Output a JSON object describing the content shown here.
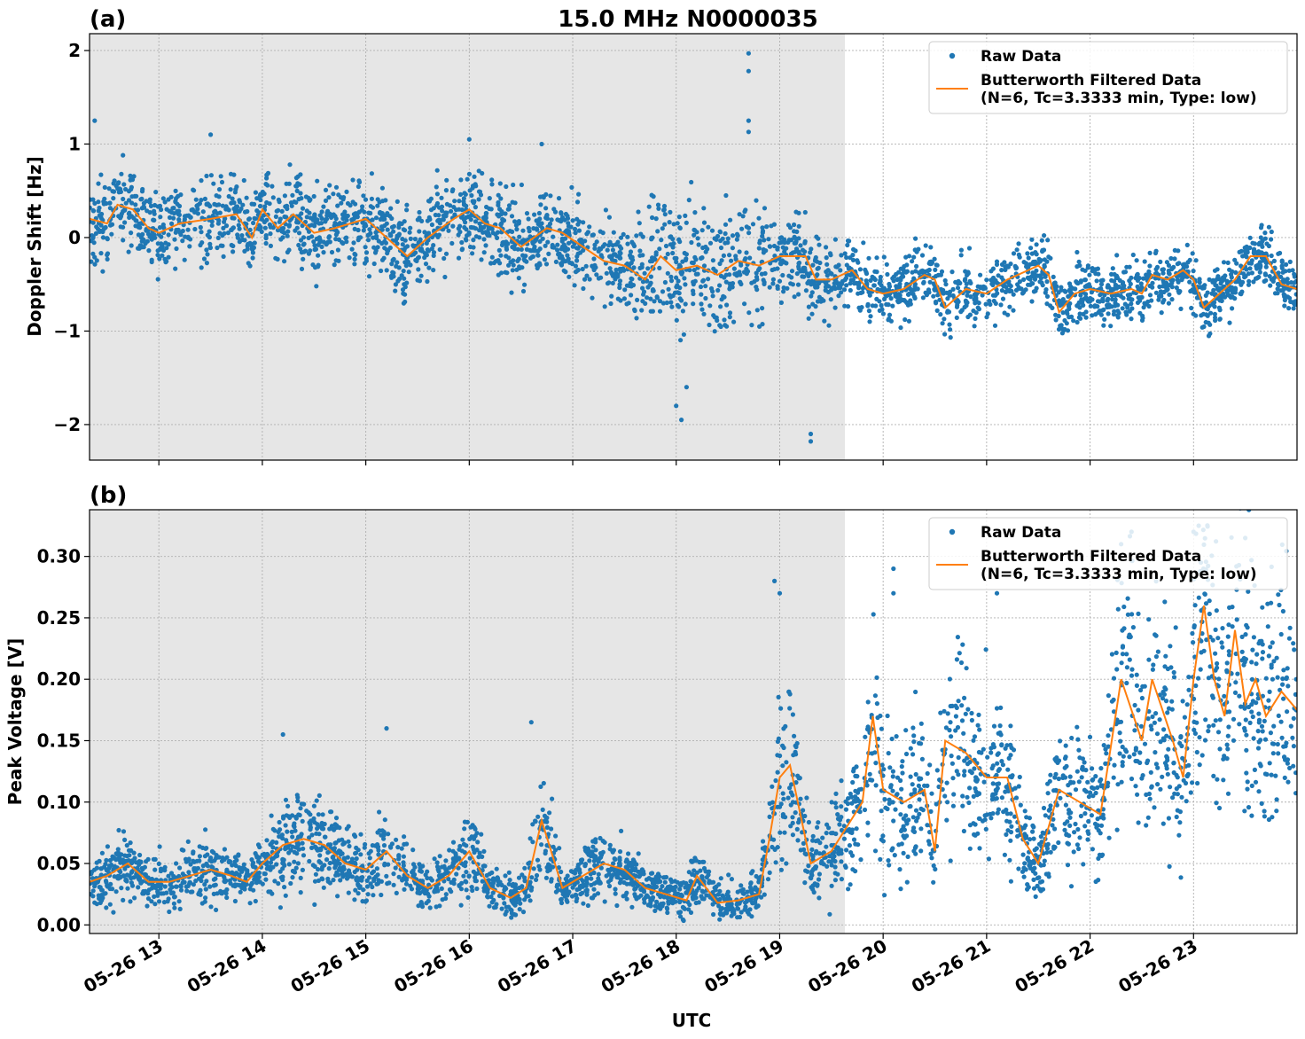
{
  "figure": {
    "title": "15.0 MHz N0000035",
    "xlabel": "UTC",
    "x_range_hours": [
      12.33,
      24.0
    ],
    "x_tick_hours": [
      13,
      14,
      15,
      16,
      17,
      18,
      19,
      20,
      21,
      22,
      23
    ],
    "x_tick_labels": [
      "05-26 13",
      "05-26 14",
      "05-26 15",
      "05-26 16",
      "05-26 17",
      "05-26 18",
      "05-26 19",
      "05-26 20",
      "05-26 21",
      "05-26 22",
      "05-26 23"
    ],
    "shaded_interval_hours": [
      12.33,
      19.63
    ],
    "grid": true
  },
  "colors": {
    "raw": "#1f77b4",
    "filtered": "#ff7f0e",
    "shade": "#e6e6e6",
    "grid": "#b0b0b0"
  },
  "legend": {
    "raw_label": "Raw Data",
    "filtered_label_line1": "Butterworth Filtered Data",
    "filtered_label_line2": "(N=6, Tc=3.3333 min, Type: low)"
  },
  "chart_data": [
    {
      "panel_label": "(a)",
      "type": "scatter",
      "ylabel": "Doppler Shift [Hz]",
      "ylim": [
        -2.38,
        2.18
      ],
      "yticks": [
        -2,
        -1,
        0,
        1,
        2
      ],
      "ytick_labels": [
        "−2",
        "−1",
        "0",
        "1",
        "2"
      ],
      "legend_position": "upper right",
      "series": [
        {
          "name": "Butterworth Filtered Data (N=6, Tc=3.3333 min, Type: low)",
          "kind": "line",
          "x": [
            12.33,
            12.5,
            12.6,
            12.75,
            12.9,
            13.0,
            13.2,
            13.5,
            13.75,
            13.9,
            14.0,
            14.15,
            14.3,
            14.5,
            14.7,
            15.0,
            15.2,
            15.4,
            15.6,
            15.85,
            16.0,
            16.15,
            16.3,
            16.5,
            16.75,
            16.9,
            17.1,
            17.3,
            17.5,
            17.7,
            17.85,
            18.0,
            18.2,
            18.4,
            18.6,
            18.8,
            19.0,
            19.25,
            19.35,
            19.5,
            19.7,
            19.85,
            20.0,
            20.2,
            20.4,
            20.5,
            20.6,
            20.8,
            21.0,
            21.2,
            21.4,
            21.5,
            21.6,
            21.7,
            21.85,
            22.0,
            22.2,
            22.4,
            22.5,
            22.6,
            22.75,
            22.9,
            23.0,
            23.1,
            23.3,
            23.4,
            23.55,
            23.7,
            23.85,
            24.0
          ],
          "y": [
            0.2,
            0.15,
            0.35,
            0.3,
            0.1,
            0.05,
            0.15,
            0.2,
            0.25,
            0.0,
            0.3,
            0.1,
            0.25,
            0.05,
            0.1,
            0.2,
            0.0,
            -0.2,
            0.0,
            0.2,
            0.3,
            0.15,
            0.1,
            -0.1,
            0.1,
            0.05,
            -0.1,
            -0.25,
            -0.3,
            -0.45,
            -0.2,
            -0.35,
            -0.3,
            -0.4,
            -0.25,
            -0.3,
            -0.2,
            -0.2,
            -0.45,
            -0.45,
            -0.35,
            -0.55,
            -0.6,
            -0.55,
            -0.4,
            -0.45,
            -0.75,
            -0.55,
            -0.6,
            -0.45,
            -0.35,
            -0.3,
            -0.4,
            -0.8,
            -0.6,
            -0.55,
            -0.6,
            -0.55,
            -0.6,
            -0.4,
            -0.45,
            -0.35,
            -0.45,
            -0.75,
            -0.55,
            -0.45,
            -0.2,
            -0.2,
            -0.5,
            -0.55
          ]
        },
        {
          "name": "Raw Data",
          "kind": "points",
          "outliers_x": [
            12.38,
            13.5,
            16.0,
            16.7,
            18.0,
            18.05,
            18.1,
            18.7,
            18.7,
            18.7,
            18.7,
            19.3,
            19.3
          ],
          "outliers_y": [
            1.25,
            1.1,
            1.05,
            1.0,
            -1.8,
            -1.95,
            -1.6,
            1.97,
            1.78,
            1.25,
            1.13,
            -2.1,
            -2.18
          ]
        }
      ]
    },
    {
      "panel_label": "(b)",
      "type": "scatter",
      "ylabel": "Peak Voltage [V]",
      "ylim": [
        -0.007,
        0.338
      ],
      "yticks": [
        0.0,
        0.05,
        0.1,
        0.15,
        0.2,
        0.25,
        0.3
      ],
      "ytick_labels": [
        "0.00",
        "0.05",
        "0.10",
        "0.15",
        "0.20",
        "0.25",
        "0.30"
      ],
      "legend_position": "upper right",
      "series": [
        {
          "name": "Butterworth Filtered Data (N=6, Tc=3.3333 min, Type: low)",
          "kind": "line",
          "x": [
            12.33,
            12.5,
            12.7,
            12.9,
            13.1,
            13.3,
            13.5,
            13.7,
            13.85,
            14.0,
            14.2,
            14.4,
            14.6,
            14.8,
            15.0,
            15.2,
            15.4,
            15.6,
            15.8,
            16.0,
            16.2,
            16.4,
            16.55,
            16.7,
            16.9,
            17.1,
            17.3,
            17.5,
            17.7,
            17.9,
            18.1,
            18.2,
            18.4,
            18.6,
            18.8,
            18.9,
            19.0,
            19.1,
            19.3,
            19.5,
            19.65,
            19.8,
            19.9,
            20.0,
            20.2,
            20.4,
            20.5,
            20.6,
            20.8,
            21.0,
            21.2,
            21.35,
            21.5,
            21.7,
            21.9,
            22.1,
            22.3,
            22.5,
            22.6,
            22.8,
            22.9,
            23.0,
            23.1,
            23.2,
            23.3,
            23.4,
            23.5,
            23.6,
            23.7,
            23.85,
            24.0
          ],
          "y": [
            0.035,
            0.04,
            0.05,
            0.035,
            0.035,
            0.04,
            0.045,
            0.04,
            0.035,
            0.05,
            0.065,
            0.07,
            0.065,
            0.05,
            0.045,
            0.06,
            0.04,
            0.03,
            0.04,
            0.06,
            0.03,
            0.022,
            0.03,
            0.085,
            0.03,
            0.04,
            0.05,
            0.045,
            0.03,
            0.025,
            0.02,
            0.04,
            0.018,
            0.02,
            0.025,
            0.07,
            0.12,
            0.13,
            0.05,
            0.06,
            0.08,
            0.1,
            0.17,
            0.11,
            0.1,
            0.11,
            0.06,
            0.15,
            0.14,
            0.12,
            0.12,
            0.07,
            0.05,
            0.11,
            0.1,
            0.09,
            0.2,
            0.15,
            0.2,
            0.15,
            0.12,
            0.2,
            0.26,
            0.2,
            0.17,
            0.24,
            0.18,
            0.2,
            0.17,
            0.19,
            0.175
          ]
        },
        {
          "name": "Raw Data",
          "kind": "points",
          "outliers_x": [
            14.2,
            15.2,
            16.6,
            18.95,
            19.0,
            20.1,
            20.1,
            21.1,
            22.3,
            22.4,
            23.0,
            23.05,
            23.5
          ],
          "outliers_y": [
            0.155,
            0.16,
            0.165,
            0.28,
            0.27,
            0.29,
            0.27,
            0.27,
            0.31,
            0.32,
            0.32,
            0.325,
            0.315
          ]
        }
      ]
    }
  ]
}
